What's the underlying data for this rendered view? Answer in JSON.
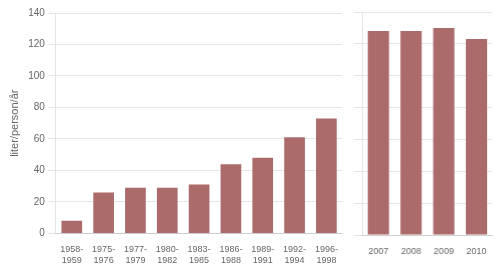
{
  "chart_data": [
    {
      "type": "bar",
      "ylabel": "liter/person/år",
      "categories": [
        "1958-\n1959",
        "1975-\n1976",
        "1977-\n1979",
        "1980-\n1982",
        "1983-\n1985",
        "1986-\n1988",
        "1989-\n1991",
        "1992-\n1994",
        "1996-\n1998"
      ],
      "values": [
        8,
        26,
        29,
        29,
        31,
        44,
        48,
        61,
        73
      ],
      "color": "#ac6b6b",
      "ylim": [
        0,
        140
      ],
      "yticks": [
        0,
        20,
        40,
        60,
        80,
        100,
        120,
        140
      ],
      "grid": true
    },
    {
      "type": "bar",
      "categories": [
        "2007",
        "2008",
        "2009",
        "2010"
      ],
      "values": [
        128,
        128,
        130,
        123
      ],
      "color": "#ac6b6b",
      "ylim": [
        0,
        140
      ],
      "yticks": [
        0,
        20,
        40,
        60,
        80,
        100,
        120,
        140
      ],
      "grid": true,
      "tick_labels": "x"
    }
  ]
}
